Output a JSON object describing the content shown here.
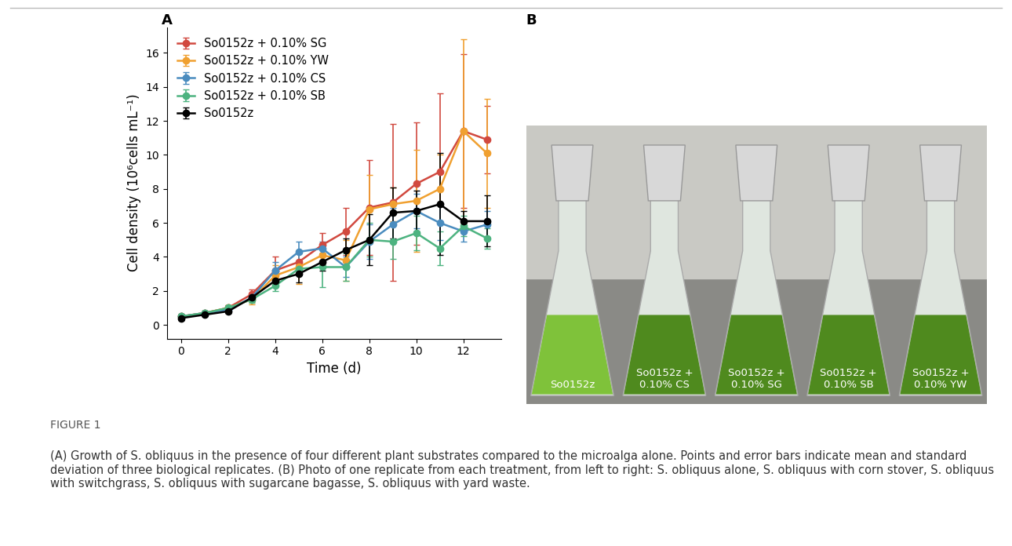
{
  "chart_data": {
    "type": "line",
    "x_label": "Time (d)",
    "y_label": "Cell density (10⁶cells mL⁻¹)",
    "x": [
      0,
      1,
      2,
      3,
      4,
      5,
      6,
      7,
      8,
      9,
      10,
      11,
      12,
      13
    ],
    "xlim": [
      -0.6,
      13.6
    ],
    "xticks": [
      0,
      2,
      4,
      6,
      8,
      10,
      12
    ],
    "ylim": [
      -0.8,
      17.5
    ],
    "yticks": [
      0,
      2,
      4,
      6,
      8,
      10,
      12,
      14,
      16
    ],
    "legend": "upper left",
    "grid": false,
    "marker": "o",
    "series": [
      {
        "name": "So0152z + 0.10% SG",
        "color": "#D1493F",
        "values": [
          0.5,
          0.7,
          1.0,
          1.8,
          3.2,
          3.7,
          4.7,
          5.5,
          6.9,
          7.2,
          8.3,
          9.0,
          11.4,
          10.9
        ],
        "error": [
          0.1,
          0.1,
          0.15,
          0.3,
          0.8,
          0.5,
          0.7,
          1.4,
          2.8,
          4.6,
          3.6,
          4.6,
          4.5,
          2.0
        ]
      },
      {
        "name": "So0152z + 0.10% YW",
        "color": "#F0A030",
        "values": [
          0.5,
          0.7,
          1.0,
          1.5,
          2.9,
          3.4,
          4.1,
          3.8,
          6.8,
          7.1,
          7.3,
          8.0,
          11.4,
          10.1
        ],
        "error": [
          0.1,
          0.1,
          0.1,
          0.3,
          0.6,
          1.0,
          0.6,
          1.2,
          2.0,
          1.0,
          3.0,
          2.0,
          5.4,
          3.2
        ]
      },
      {
        "name": "So0152z + 0.10% CS",
        "color": "#4A8CBF",
        "values": [
          0.5,
          0.7,
          0.9,
          1.6,
          3.2,
          4.3,
          4.5,
          3.4,
          4.9,
          5.9,
          6.7,
          6.0,
          5.5,
          5.9
        ],
        "error": [
          0.1,
          0.1,
          0.1,
          0.2,
          0.5,
          0.6,
          0.4,
          0.6,
          1.0,
          1.0,
          1.0,
          1.0,
          0.6,
          0.8
        ]
      },
      {
        "name": "So0152z + 0.10% SB",
        "color": "#4DB380",
        "values": [
          0.5,
          0.7,
          1.0,
          1.5,
          2.3,
          3.3,
          3.4,
          3.4,
          5.0,
          4.9,
          5.4,
          4.5,
          5.8,
          5.1
        ],
        "error": [
          0.1,
          0.1,
          0.1,
          0.2,
          0.3,
          0.4,
          1.2,
          0.8,
          1.0,
          1.0,
          1.0,
          1.0,
          0.6,
          0.6
        ]
      },
      {
        "name": "So0152z",
        "color": "#000000",
        "values": [
          0.4,
          0.6,
          0.8,
          1.6,
          2.6,
          3.0,
          3.7,
          4.4,
          5.0,
          6.6,
          6.7,
          7.1,
          6.1,
          6.1
        ],
        "error": [
          0.1,
          0.1,
          0.1,
          0.2,
          0.2,
          0.5,
          0.5,
          0.7,
          1.5,
          1.5,
          1.2,
          3.0,
          0.6,
          1.5
        ]
      }
    ]
  },
  "panel_labels": [
    "A",
    "B"
  ],
  "photo": {
    "flask_labels": [
      "So0152z",
      "So0152z +\n0.10% CS",
      "So0152z +\n0.10% SG",
      "So0152z +\n0.10% SB",
      "So0152z +\n0.10% YW"
    ]
  },
  "figure_label": "FIGURE 1",
  "caption": "(A) Growth of S. obliquus in the presence of four different plant substrates compared to the microalga alone. Points and error bars indicate mean and standard deviation of three biological replicates. (B) Photo of one replicate from each treatment, from left to right: S. obliquus alone, S. obliquus with corn stover, S. obliquus with switchgrass, S. obliquus with sugarcane bagasse, S. obliquus with yard waste."
}
